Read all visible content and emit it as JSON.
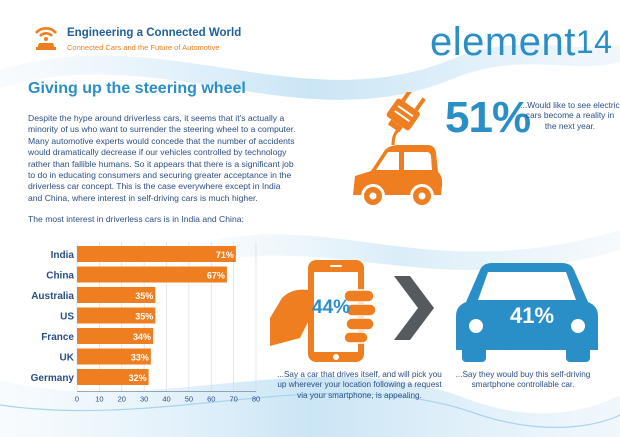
{
  "header": {
    "title": "Engineering a Connected World",
    "subtitle": "Connected Cars and the Future of Automotive",
    "logo": {
      "text": "element",
      "number": "14"
    }
  },
  "page_title": "Giving up the steering wheel",
  "body_text": "Despite the hype around driverless cars, it seems that it's actually a minority of us who want to surrender the steering wheel to a computer. Many automotive experts would concede that the number of accidents would dramatically decrease if our vehicles controlled by technology rather than fallible humans. So it appears that there is a significant job to do in educating consumers and securing greater acceptance in the driverless car concept. This is the case everywhere except in India and China, where interest in self-driving cars is much higher.",
  "chart_lead": "The most interest in driverless cars is in India and China:",
  "stats": {
    "electric": {
      "value": "51%",
      "note": "...Would like to see electric cars become a reality in the next year."
    },
    "phone": {
      "value": "44%",
      "note": "...Say a car that drives itself, and will pick you up wherever your location following a request via your smartphone, is appealing."
    },
    "car": {
      "value": "41%",
      "note": "...Say they would buy this self-driving smartphone controllable car."
    }
  },
  "colors": {
    "orange": "#ee7e1f",
    "blue": "#2a8fc6",
    "text": "#2a4e85"
  },
  "chart_data": {
    "type": "bar",
    "orientation": "horizontal",
    "categories": [
      "India",
      "China",
      "Australia",
      "US",
      "France",
      "UK",
      "Germany"
    ],
    "values": [
      71,
      67,
      35,
      35,
      34,
      33,
      32
    ],
    "value_labels": [
      "71%",
      "67%",
      "35%",
      "35%",
      "34%",
      "33%",
      "32%"
    ],
    "xlim": [
      0,
      80
    ],
    "xticks": [
      0,
      10,
      20,
      30,
      40,
      50,
      60,
      70,
      80
    ],
    "grid": true,
    "bar_color": "#ee7e1f"
  }
}
